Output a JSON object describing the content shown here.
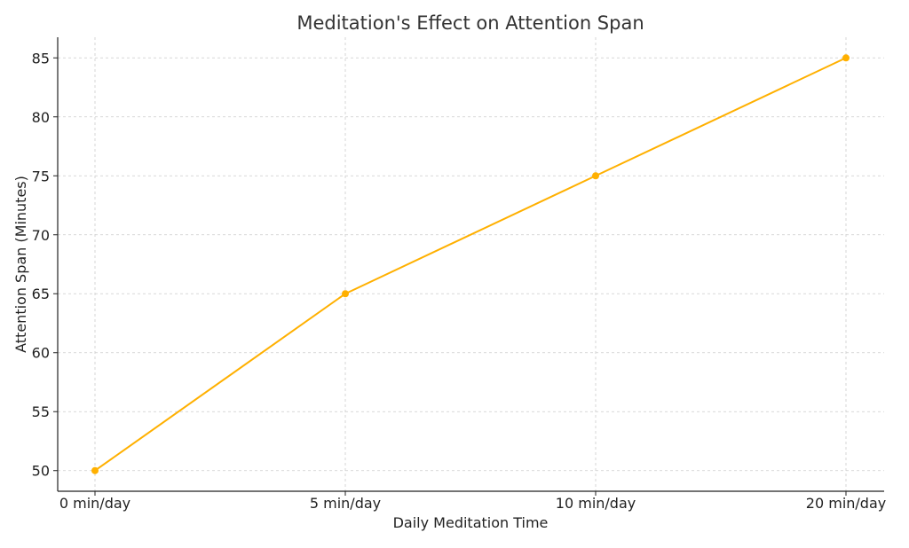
{
  "chart_data": {
    "type": "line",
    "title": "Meditation's Effect on Attention Span",
    "xlabel": "Daily Meditation Time",
    "ylabel": "Attention Span (Minutes)",
    "categories": [
      "0 min/day",
      "5 min/day",
      "10 min/day",
      "20 min/day"
    ],
    "series": [
      {
        "values": [
          50,
          65,
          75,
          85
        ]
      }
    ],
    "ylim": [
      48.25,
      86.75
    ],
    "yticks": [
      50,
      55,
      60,
      65,
      70,
      75,
      80,
      85
    ],
    "grid": true,
    "legend": "none",
    "colors": {
      "line": "#ffb000",
      "axis": "#222222",
      "grid": "#cccccc",
      "text": "#333333"
    }
  }
}
